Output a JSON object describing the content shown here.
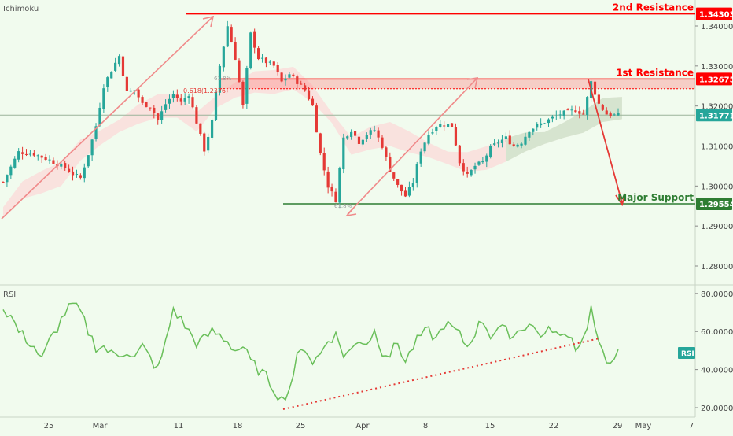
{
  "indicators": {
    "main": "Ichimoku",
    "lower": "RSI"
  },
  "colors": {
    "background": "#f1fbee",
    "candle_up": "#26a69a",
    "candle_down": "#e53935",
    "resistance": "#ff0000",
    "support": "#2e7d32",
    "cloud": "#ffcdd2",
    "cloud_green": "#c8e6c9",
    "rsi_line": "#6abf5a",
    "arrow_pink": "#f08a8a"
  },
  "price_axis": {
    "ticks": [
      "1.34000",
      "1.33000",
      "1.32000",
      "1.31000",
      "1.30000",
      "1.29000",
      "1.28000"
    ],
    "current_price": "1.31771"
  },
  "rsi_axis": {
    "ticks": [
      "80.0000",
      "60.0000",
      "40.0000",
      "20.0000"
    ],
    "badge": "RSI"
  },
  "time_axis": {
    "labels": [
      "25",
      "Mar",
      "11",
      "18",
      "25",
      "Apr",
      "8",
      "15",
      "22",
      "29",
      "May",
      "7"
    ]
  },
  "levels": [
    {
      "name": "2nd Resistance",
      "price": "1.34303",
      "value": 1.34303
    },
    {
      "name": "1st Resistance",
      "price": "1.32675",
      "value": 1.32675
    },
    {
      "name": "Major Support",
      "price": "1.29554",
      "value": 1.29554
    }
  ],
  "fib_labels": {
    "fib_a": "0.618(1.2376)",
    "fib_b": "61.8%",
    "fib_c": "61.8%"
  },
  "chart_data": {
    "type": "candlestick",
    "title": "",
    "ylim": [
      1.2725,
      1.346
    ],
    "rsi_ylim": [
      18,
      82
    ],
    "price_path": [
      [
        0,
        1.301
      ],
      [
        4,
        1.3085
      ],
      [
        8,
        1.308
      ],
      [
        12,
        1.3065
      ],
      [
        16,
        1.3045
      ],
      [
        18,
        1.303
      ],
      [
        20,
        1.302
      ],
      [
        22,
        1.308
      ],
      [
        24,
        1.315
      ],
      [
        26,
        1.325
      ],
      [
        28,
        1.329
      ],
      [
        30,
        1.3325
      ],
      [
        32,
        1.3235
      ],
      [
        34,
        1.324
      ],
      [
        36,
        1.3205
      ],
      [
        38,
        1.32
      ],
      [
        40,
        1.3165
      ],
      [
        42,
        1.3205
      ],
      [
        44,
        1.323
      ],
      [
        46,
        1.321
      ],
      [
        48,
        1.323
      ],
      [
        50,
        1.316
      ],
      [
        52,
        1.309
      ],
      [
        54,
        1.316
      ],
      [
        56,
        1.33
      ],
      [
        58,
        1.34
      ],
      [
        60,
        1.332
      ],
      [
        62,
        1.32
      ],
      [
        64,
        1.338
      ],
      [
        66,
        1.332
      ],
      [
        68,
        1.331
      ],
      [
        70,
        1.33
      ],
      [
        72,
        1.326
      ],
      [
        74,
        1.328
      ],
      [
        76,
        1.326
      ],
      [
        78,
        1.324
      ],
      [
        80,
        1.32
      ],
      [
        82,
        1.308
      ],
      [
        84,
        1.3
      ],
      [
        86,
        1.2965
      ],
      [
        88,
        1.312
      ],
      [
        90,
        1.314
      ],
      [
        92,
        1.311
      ],
      [
        94,
        1.313
      ],
      [
        96,
        1.314
      ],
      [
        98,
        1.31
      ],
      [
        100,
        1.304
      ],
      [
        102,
        1.3
      ],
      [
        104,
        1.2975
      ],
      [
        106,
        1.301
      ],
      [
        108,
        1.309
      ],
      [
        110,
        1.313
      ],
      [
        112,
        1.315
      ],
      [
        114,
        1.3155
      ],
      [
        116,
        1.315
      ],
      [
        118,
        1.306
      ],
      [
        120,
        1.3025
      ],
      [
        122,
        1.305
      ],
      [
        124,
        1.306
      ],
      [
        126,
        1.3095
      ],
      [
        128,
        1.311
      ],
      [
        130,
        1.312
      ],
      [
        132,
        1.31
      ],
      [
        134,
        1.311
      ],
      [
        136,
        1.314
      ],
      [
        138,
        1.315
      ],
      [
        140,
        1.316
      ],
      [
        142,
        1.317
      ],
      [
        144,
        1.318
      ],
      [
        146,
        1.3185
      ],
      [
        148,
        1.319
      ],
      [
        150,
        1.318
      ],
      [
        152,
        1.326
      ],
      [
        154,
        1.3205
      ],
      [
        156,
        1.318
      ],
      [
        158,
        1.3177
      ]
    ],
    "rsi_path": [
      [
        0,
        72
      ],
      [
        2,
        68
      ],
      [
        4,
        60
      ],
      [
        6,
        56
      ],
      [
        8,
        52
      ],
      [
        10,
        45
      ],
      [
        12,
        55
      ],
      [
        14,
        62
      ],
      [
        16,
        70
      ],
      [
        18,
        74
      ],
      [
        20,
        70
      ],
      [
        22,
        60
      ],
      [
        24,
        52
      ],
      [
        26,
        52
      ],
      [
        28,
        48
      ],
      [
        30,
        48
      ],
      [
        32,
        50
      ],
      [
        34,
        46
      ],
      [
        36,
        52
      ],
      [
        38,
        46
      ],
      [
        40,
        40
      ],
      [
        42,
        54
      ],
      [
        44,
        72
      ],
      [
        46,
        66
      ],
      [
        48,
        60
      ],
      [
        50,
        54
      ],
      [
        52,
        56
      ],
      [
        54,
        60
      ],
      [
        56,
        58
      ],
      [
        58,
        55
      ],
      [
        60,
        50
      ],
      [
        62,
        52
      ],
      [
        64,
        44
      ],
      [
        66,
        40
      ],
      [
        68,
        36
      ],
      [
        70,
        30
      ],
      [
        72,
        24
      ],
      [
        74,
        30
      ],
      [
        76,
        46
      ],
      [
        78,
        52
      ],
      [
        80,
        44
      ],
      [
        82,
        48
      ],
      [
        84,
        56
      ],
      [
        86,
        58
      ],
      [
        88,
        48
      ],
      [
        90,
        50
      ],
      [
        92,
        56
      ],
      [
        94,
        54
      ],
      [
        96,
        60
      ],
      [
        98,
        50
      ],
      [
        100,
        48
      ],
      [
        102,
        54
      ],
      [
        104,
        44
      ],
      [
        106,
        52
      ],
      [
        108,
        58
      ],
      [
        110,
        60
      ],
      [
        112,
        56
      ],
      [
        114,
        64
      ],
      [
        116,
        62
      ],
      [
        118,
        58
      ],
      [
        120,
        52
      ],
      [
        122,
        60
      ],
      [
        124,
        66
      ],
      [
        126,
        58
      ],
      [
        128,
        62
      ],
      [
        130,
        60
      ],
      [
        132,
        58
      ],
      [
        134,
        62
      ],
      [
        136,
        64
      ],
      [
        138,
        60
      ],
      [
        140,
        58
      ],
      [
        142,
        62
      ],
      [
        144,
        56
      ],
      [
        146,
        60
      ],
      [
        148,
        52
      ],
      [
        150,
        56
      ],
      [
        152,
        72
      ],
      [
        154,
        52
      ],
      [
        156,
        44
      ],
      [
        158,
        48
      ]
    ],
    "cloud_path": [
      [
        0,
        1.2935
      ],
      [
        5,
        1.299
      ],
      [
        10,
        1.301
      ],
      [
        15,
        1.303
      ],
      [
        20,
        1.309
      ],
      [
        25,
        1.312
      ],
      [
        30,
        1.315
      ],
      [
        35,
        1.318
      ],
      [
        40,
        1.32
      ],
      [
        45,
        1.32
      ],
      [
        50,
        1.316
      ],
      [
        55,
        1.321
      ],
      [
        60,
        1.324
      ],
      [
        65,
        1.326
      ],
      [
        70,
        1.326
      ],
      [
        75,
        1.327
      ],
      [
        80,
        1.323
      ],
      [
        85,
        1.317
      ],
      [
        90,
        1.31
      ],
      [
        95,
        1.312
      ],
      [
        100,
        1.313
      ],
      [
        105,
        1.311
      ],
      [
        110,
        1.309
      ],
      [
        115,
        1.307
      ],
      [
        120,
        1.306
      ],
      [
        125,
        1.307
      ],
      [
        130,
        1.309
      ],
      [
        135,
        1.311
      ],
      [
        140,
        1.312
      ],
      [
        145,
        1.314
      ],
      [
        150,
        1.316
      ],
      [
        155,
        1.319
      ],
      [
        160,
        1.3195
      ]
    ]
  }
}
